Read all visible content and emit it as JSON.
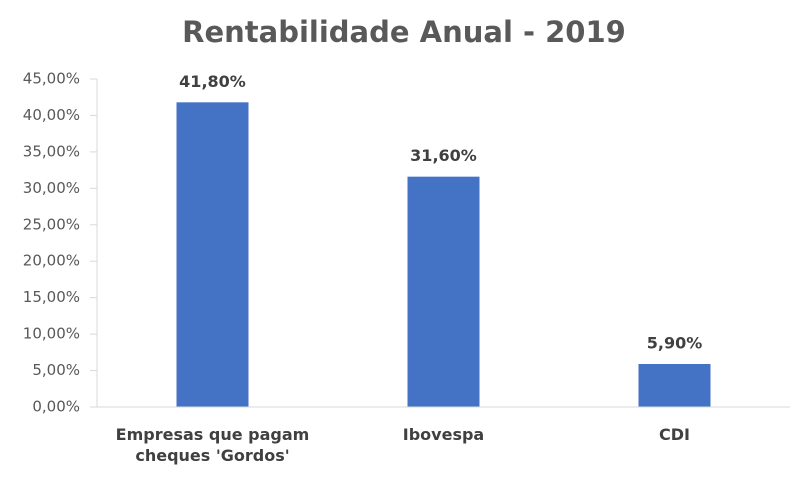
{
  "chart_data": {
    "type": "bar",
    "title": "Rentabilidade Anual - 2019",
    "categories": [
      "Empresas que pagam cheques 'Gordos'",
      "Ibovespa",
      "CDI"
    ],
    "values": [
      41.8,
      31.6,
      5.9
    ],
    "value_labels": [
      "41,80%",
      "31,60%",
      "5,90%"
    ],
    "color": "#4472c4",
    "ylim": [
      0,
      45
    ],
    "yticks": [
      {
        "value": 0,
        "label": "0,00%"
      },
      {
        "value": 5,
        "label": "5,00%"
      },
      {
        "value": 10,
        "label": "10,00%"
      },
      {
        "value": 15,
        "label": "15,00%"
      },
      {
        "value": 20,
        "label": "20,00%"
      },
      {
        "value": 25,
        "label": "25,00%"
      },
      {
        "value": 30,
        "label": "30,00%"
      },
      {
        "value": 35,
        "label": "35,00%"
      },
      {
        "value": 40,
        "label": "40,00%"
      },
      {
        "value": 45,
        "label": "45,00%"
      }
    ],
    "grid": false
  }
}
